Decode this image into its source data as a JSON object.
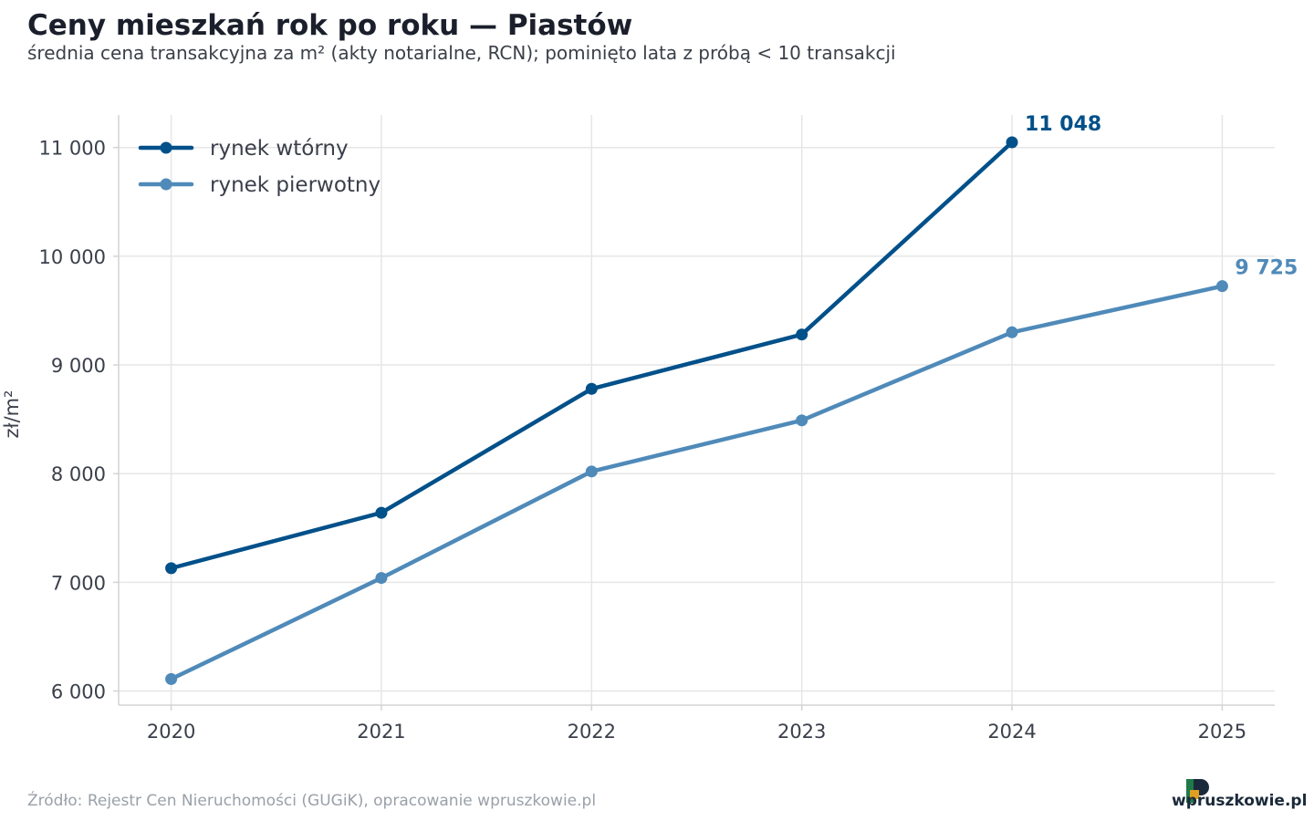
{
  "header": {
    "title": "Ceny mieszkań rok po roku — Piastów",
    "subtitle": "średnia cena transakcyjna za m² (akty notarialne, RCN); pominięto lata z próbą < 10 transakcji"
  },
  "footer": {
    "source": "Źródło: Rejestr Cen Nieruchomości (GUGiK), opracowanie wpruszkowie.pl",
    "logo": "wpruszkowie.pl"
  },
  "chart_data": {
    "type": "line",
    "title": "Ceny mieszkań rok po roku — Piastów",
    "ylabel": "zł/m²",
    "xlabel": "",
    "x": [
      2020,
      2021,
      2022,
      2023,
      2024,
      2025
    ],
    "ylim": [
      5870,
      11300
    ],
    "xlim": [
      2019.75,
      2025.25
    ],
    "yticks": [
      6000,
      7000,
      8000,
      9000,
      10000,
      11000
    ],
    "ytick_labels": [
      "6 000",
      "7 000",
      "8 000",
      "9 000",
      "10 000",
      "11 000"
    ],
    "xtick_labels": [
      "2020",
      "2021",
      "2022",
      "2023",
      "2024",
      "2025"
    ],
    "grid": true,
    "legend_position": "top-left",
    "series": [
      {
        "name": "rynek wtórny",
        "color": "#00508a",
        "values": [
          7130,
          7640,
          8780,
          9280,
          11048,
          null
        ],
        "end_label": "11 048"
      },
      {
        "name": "rynek pierwotny",
        "color": "#4f8ab9",
        "values": [
          6110,
          7040,
          8020,
          8490,
          9300,
          9725
        ],
        "end_label": "9 725"
      }
    ],
    "colors": {
      "grid": "#e6e6e6",
      "axis": "#d4d4d4",
      "tick_text": "#3a3f4a"
    }
  }
}
